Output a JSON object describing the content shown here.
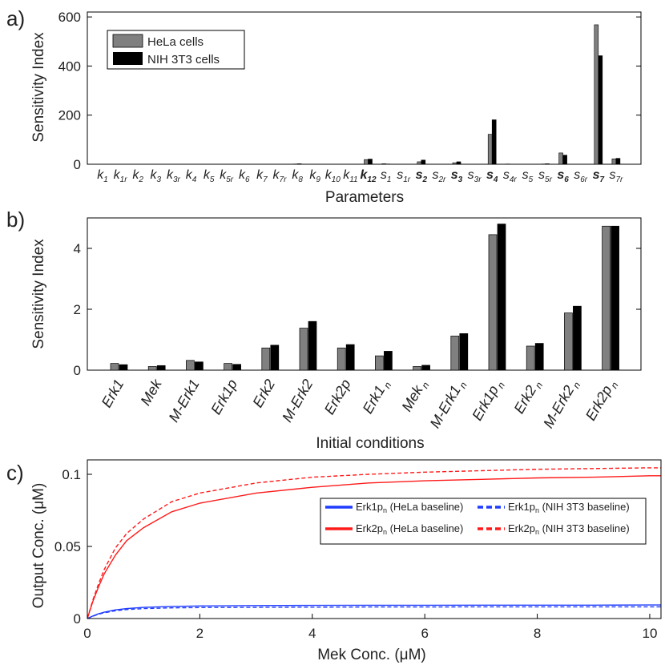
{
  "chart_data": [
    {
      "panel": "a)",
      "type": "bar",
      "xlabel": "Parameters",
      "ylabel": "Sensitivity Index",
      "ylim": [
        0,
        620
      ],
      "yticks": [
        0,
        200,
        400,
        600
      ],
      "legend": {
        "placement": "top-left",
        "entries": [
          "HeLa cells",
          "NIH 3T3 cells"
        ]
      },
      "categories": [
        {
          "base": "k",
          "sub": "1",
          "bold": false
        },
        {
          "base": "k",
          "sub": "1r",
          "bold": false
        },
        {
          "base": "k",
          "sub": "2",
          "bold": false
        },
        {
          "base": "k",
          "sub": "3",
          "bold": false
        },
        {
          "base": "k",
          "sub": "3r",
          "bold": false
        },
        {
          "base": "k",
          "sub": "4",
          "bold": false
        },
        {
          "base": "k",
          "sub": "5",
          "bold": false
        },
        {
          "base": "k",
          "sub": "5r",
          "bold": false
        },
        {
          "base": "k",
          "sub": "6",
          "bold": false
        },
        {
          "base": "k",
          "sub": "7",
          "bold": false
        },
        {
          "base": "k",
          "sub": "7r",
          "bold": false
        },
        {
          "base": "k",
          "sub": "8",
          "bold": false
        },
        {
          "base": "k",
          "sub": "9",
          "bold": false
        },
        {
          "base": "k",
          "sub": "10",
          "bold": false
        },
        {
          "base": "k",
          "sub": "11",
          "bold": false
        },
        {
          "base": "k",
          "sub": "12",
          "bold": true
        },
        {
          "base": "s",
          "sub": "1",
          "bold": false
        },
        {
          "base": "s",
          "sub": "1r",
          "bold": false
        },
        {
          "base": "s",
          "sub": "2",
          "bold": true
        },
        {
          "base": "s",
          "sub": "2r",
          "bold": false
        },
        {
          "base": "s",
          "sub": "3",
          "bold": true
        },
        {
          "base": "s",
          "sub": "3r",
          "bold": false
        },
        {
          "base": "s",
          "sub": "4",
          "bold": true
        },
        {
          "base": "s",
          "sub": "4r",
          "bold": false
        },
        {
          "base": "s",
          "sub": "5",
          "bold": false
        },
        {
          "base": "s",
          "sub": "5r",
          "bold": false
        },
        {
          "base": "s",
          "sub": "6",
          "bold": true
        },
        {
          "base": "s",
          "sub": "6r",
          "bold": false
        },
        {
          "base": "s",
          "sub": "7",
          "bold": true
        },
        {
          "base": "s",
          "sub": "7r",
          "bold": false
        }
      ],
      "series": [
        {
          "name": "HeLa cells",
          "color": "#808080",
          "values": [
            0,
            0,
            0,
            0,
            0,
            0,
            0,
            0,
            0,
            0,
            0,
            1,
            0,
            0,
            0,
            19,
            2,
            0,
            10,
            0,
            6,
            0,
            122,
            1,
            0,
            1,
            46,
            0,
            568,
            22
          ]
        },
        {
          "name": "NIH 3T3 cells",
          "color": "#000000",
          "values": [
            0,
            0,
            0,
            0,
            0,
            0,
            0,
            0,
            0,
            0,
            0,
            2,
            0,
            0,
            0,
            21,
            1,
            0,
            17,
            0,
            10,
            0,
            181,
            0,
            0,
            2,
            37,
            0,
            442,
            24
          ]
        }
      ]
    },
    {
      "panel": "b)",
      "type": "bar",
      "xlabel": "Initial conditions",
      "ylabel": "Sensitivity Index",
      "ylim": [
        0,
        5
      ],
      "yticks": [
        0,
        2,
        4
      ],
      "categories": [
        {
          "base": "Erk1",
          "sub": ""
        },
        {
          "base": "Mek",
          "sub": ""
        },
        {
          "base": "M-Erk1",
          "sub": ""
        },
        {
          "base": "Erk1p",
          "sub": ""
        },
        {
          "base": "Erk2",
          "sub": ""
        },
        {
          "base": "M-Erk2",
          "sub": ""
        },
        {
          "base": "Erk2p",
          "sub": ""
        },
        {
          "base": "Erk1",
          "sub": "n"
        },
        {
          "base": "Mek",
          "sub": "n"
        },
        {
          "base": "M-Erk1",
          "sub": "n"
        },
        {
          "base": "Erk1p",
          "sub": "n"
        },
        {
          "base": "Erk2",
          "sub": "n"
        },
        {
          "base": "M-Erk2",
          "sub": "n"
        },
        {
          "base": "Erk2p",
          "sub": "n"
        }
      ],
      "series": [
        {
          "name": "HeLa cells",
          "color": "#808080",
          "values": [
            0.22,
            0.12,
            0.32,
            0.22,
            0.73,
            1.38,
            0.73,
            0.47,
            0.12,
            1.12,
            4.45,
            0.79,
            1.88,
            4.73
          ]
        },
        {
          "name": "NIH 3T3 cells",
          "color": "#000000",
          "values": [
            0.18,
            0.15,
            0.27,
            0.19,
            0.82,
            1.6,
            0.84,
            0.62,
            0.16,
            1.2,
            4.8,
            0.88,
            2.1,
            4.73
          ]
        }
      ]
    },
    {
      "panel": "c)",
      "type": "line",
      "xlabel": "Mek Conc. (μM)",
      "ylabel": "Output Conc. (μM)",
      "xlim": [
        0,
        10.2
      ],
      "ylim": [
        0,
        0.11
      ],
      "xticks": [
        0,
        2,
        4,
        6,
        8,
        10
      ],
      "yticks": [
        0,
        0.05,
        0.1
      ],
      "ytick_labels": [
        "0",
        "0.05",
        "0.1"
      ],
      "legend": {
        "placement": "right"
      },
      "series": [
        {
          "label": "Erk1p",
          "sub": "n",
          "suffix": " (HeLa baseline)",
          "color": "#1f3cff",
          "dash": "solid",
          "x": [
            0,
            0.1,
            0.2,
            0.3,
            0.5,
            0.7,
            1,
            1.5,
            2,
            3,
            4,
            5,
            6,
            7,
            8,
            9,
            10,
            10.2
          ],
          "y": [
            0,
            0.0018,
            0.0033,
            0.0044,
            0.006,
            0.0069,
            0.0077,
            0.0084,
            0.0087,
            0.009,
            0.0091,
            0.0092,
            0.0092,
            0.0093,
            0.0093,
            0.0093,
            0.0094,
            0.0094
          ]
        },
        {
          "label": "Erk2p",
          "sub": "n",
          "suffix": " (HeLa baseline)",
          "color": "#ff1a1a",
          "dash": "solid",
          "x": [
            0,
            0.1,
            0.2,
            0.3,
            0.5,
            0.7,
            1,
            1.5,
            2,
            3,
            4,
            5,
            6,
            7,
            8,
            9,
            10,
            10.2
          ],
          "y": [
            0,
            0.012,
            0.022,
            0.031,
            0.044,
            0.054,
            0.063,
            0.074,
            0.08,
            0.087,
            0.091,
            0.094,
            0.0955,
            0.0965,
            0.0975,
            0.098,
            0.099,
            0.099
          ]
        },
        {
          "label": "Erk1p",
          "sub": "n",
          "suffix": " (NIH 3T3 baseline)",
          "color": "#1f3cff",
          "dash": "dashed",
          "x": [
            0,
            0.1,
            0.2,
            0.3,
            0.5,
            0.7,
            1,
            1.5,
            2,
            3,
            4,
            5,
            6,
            7,
            8,
            9,
            10,
            10.2
          ],
          "y": [
            0,
            0.0016,
            0.003,
            0.004,
            0.0054,
            0.0062,
            0.0069,
            0.0074,
            0.0076,
            0.0078,
            0.0079,
            0.008,
            0.008,
            0.0081,
            0.0081,
            0.0081,
            0.0081,
            0.0081
          ]
        },
        {
          "label": "Erk2p",
          "sub": "n",
          "suffix": " (NIH 3T3 baseline)",
          "color": "#ff1a1a",
          "dash": "dashed",
          "x": [
            0,
            0.1,
            0.2,
            0.3,
            0.5,
            0.7,
            1,
            1.5,
            2,
            3,
            4,
            5,
            6,
            7,
            8,
            9,
            10,
            10.2
          ],
          "y": [
            0,
            0.013,
            0.024,
            0.034,
            0.049,
            0.059,
            0.069,
            0.081,
            0.087,
            0.094,
            0.098,
            0.1,
            0.1015,
            0.1025,
            0.1035,
            0.104,
            0.1045,
            0.1045
          ]
        }
      ]
    }
  ]
}
